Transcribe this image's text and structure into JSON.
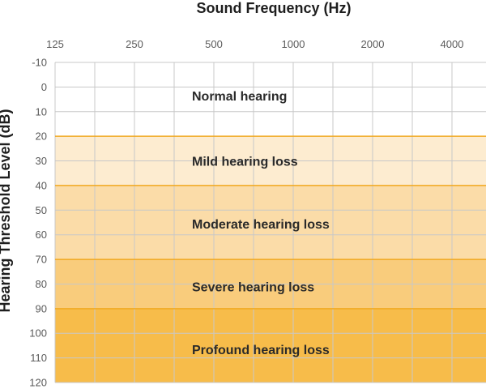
{
  "chart_data": {
    "type": "band_chart",
    "title": "Sound Frequency (Hz)",
    "xlabel": "Sound Frequency (Hz)",
    "ylabel": "Hearing Threshold Level (dB)",
    "x_axis_position": "top",
    "x_ticks": [
      "125",
      "250",
      "500",
      "1000",
      "2000",
      "4000"
    ],
    "y_ticks": [
      -10,
      0,
      10,
      20,
      30,
      40,
      50,
      60,
      70,
      80,
      90,
      100,
      110,
      120
    ],
    "ylim": [
      -10,
      120
    ],
    "y_inverted": true,
    "grid": true,
    "bands": [
      {
        "label": "Normal hearing",
        "from": -10,
        "to": 20,
        "color": "#ffffff"
      },
      {
        "label": "Mild hearing loss",
        "from": 20,
        "to": 40,
        "color": "#fdecd0"
      },
      {
        "label": "Moderate hearing loss",
        "from": 40,
        "to": 70,
        "color": "#fbdca8"
      },
      {
        "label": "Severe hearing loss",
        "from": 70,
        "to": 90,
        "color": "#f9cc7c"
      },
      {
        "label": "Profound hearing loss",
        "from": 90,
        "to": 120,
        "color": "#f7bc4a"
      }
    ],
    "boundary_color": "#f2a91f"
  }
}
